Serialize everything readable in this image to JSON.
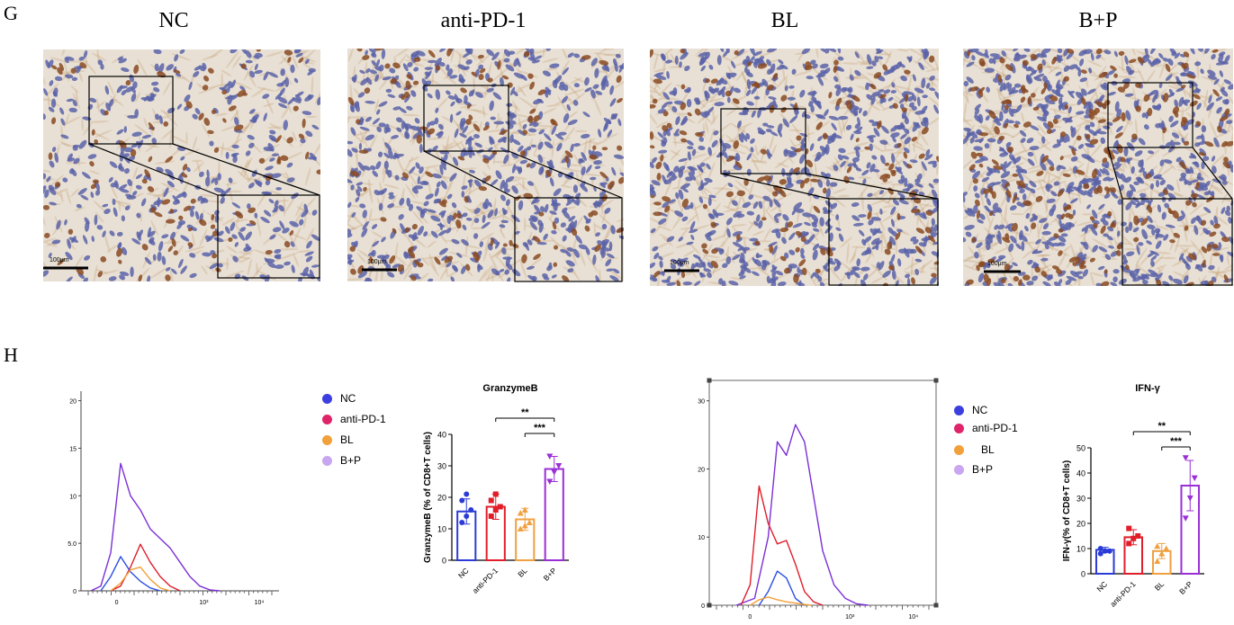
{
  "panel_g": {
    "letter": "G",
    "groups": [
      {
        "title": "NC",
        "scale_label": "100μm"
      },
      {
        "title": "anti-PD-1",
        "scale_label": "100μm"
      },
      {
        "title": "BL",
        "scale_label": "100μm"
      },
      {
        "title": "B+P",
        "scale_label": "100μm"
      }
    ],
    "colors": {
      "tissue_bg": "#e8e0d5",
      "nuclei": "#5a63a8",
      "stain": "#8a4a22"
    }
  },
  "panel_h": {
    "letter": "H",
    "legend_1": [
      {
        "label": "NC",
        "color": "#3b3fe0"
      },
      {
        "label": "anti-PD-1",
        "color": "#e0246a"
      },
      {
        "label": "BL",
        "color": "#f2a03a"
      },
      {
        "label": "B+P",
        "color": "#c9a6f0"
      }
    ],
    "legend_2": [
      {
        "label": "NC",
        "color": "#3b3fe0"
      },
      {
        "label": "anti-PD-1",
        "color": "#e0246a"
      },
      {
        "label": "BL",
        "color": "#f2a03a"
      },
      {
        "label": "B+P",
        "color": "#c9a6f0"
      }
    ]
  },
  "chart_data": [
    {
      "type": "line",
      "title": "",
      "x_ticks": [
        "0",
        "10³",
        "10⁴"
      ],
      "y_ticks": [
        "0",
        "5.0",
        "10",
        "15",
        "20"
      ],
      "ylim": [
        0,
        21
      ],
      "series": [
        {
          "name": "B+P",
          "color": "#7b2fd6",
          "x": [
            0.05,
            0.1,
            0.15,
            0.2,
            0.25,
            0.3,
            0.35,
            0.4,
            0.45,
            0.5,
            0.55,
            0.6,
            0.65,
            0.7
          ],
          "values": [
            0,
            0.5,
            4,
            13.4,
            10,
            8.5,
            6.5,
            5.5,
            4.5,
            3,
            1.5,
            0.5,
            0.1,
            0
          ]
        },
        {
          "name": "anti-PD-1",
          "color": "#e01e2a",
          "x": [
            0.15,
            0.2,
            0.25,
            0.3,
            0.35,
            0.4,
            0.45,
            0.5
          ],
          "values": [
            0,
            0.5,
            2.5,
            4.9,
            3,
            1.5,
            0.5,
            0
          ]
        },
        {
          "name": "NC",
          "color": "#2a4ee0",
          "x": [
            0.1,
            0.15,
            0.2,
            0.25,
            0.3,
            0.35,
            0.4
          ],
          "values": [
            0,
            1.5,
            3.6,
            2,
            1,
            0.3,
            0
          ]
        },
        {
          "name": "BL",
          "color": "#f2a03a",
          "x": [
            0.15,
            0.2,
            0.25,
            0.3,
            0.35,
            0.4,
            0.45
          ],
          "values": [
            0,
            0.8,
            2.2,
            2.5,
            1.2,
            0.3,
            0
          ]
        }
      ]
    },
    {
      "type": "bar",
      "title": "GranzymeB",
      "ylabel": "GranzymeB (% of CD8+T cells)",
      "categories": [
        "NC",
        "anti-PD-1",
        "BL",
        "B+P"
      ],
      "values": [
        15.5,
        17,
        13,
        29
      ],
      "errors": [
        4,
        4,
        3.5,
        4
      ],
      "points": [
        [
          12,
          14,
          16,
          19,
          21
        ],
        [
          14,
          16,
          17,
          19,
          21
        ],
        [
          10,
          11,
          12,
          15,
          16
        ],
        [
          25,
          28,
          30,
          33
        ]
      ],
      "ylim": [
        0,
        40
      ],
      "yticks": [
        "0",
        "10",
        "20",
        "30",
        "40"
      ],
      "colors": [
        "#2b3cd6",
        "#e01e2a",
        "#f0a040",
        "#9a2fd6"
      ],
      "significance": [
        {
          "from": "anti-PD-1",
          "to": "B+P",
          "label": "**"
        },
        {
          "from": "BL",
          "to": "B+P",
          "label": "***"
        }
      ]
    },
    {
      "type": "line",
      "title": "",
      "x_ticks": [
        "0",
        "10³",
        "10⁴"
      ],
      "y_ticks": [
        "0",
        "10",
        "20",
        "30"
      ],
      "ylim": [
        0,
        33
      ],
      "series": [
        {
          "name": "B+P",
          "color": "#7b2fd6",
          "x": [
            0.12,
            0.2,
            0.26,
            0.3,
            0.34,
            0.38,
            0.42,
            0.46,
            0.5,
            0.55,
            0.6,
            0.65,
            0.7
          ],
          "values": [
            0,
            1,
            10,
            24,
            22,
            26.5,
            24,
            16,
            8,
            3,
            1,
            0.2,
            0
          ]
        },
        {
          "name": "anti-PD-1",
          "color": "#e01e2a",
          "x": [
            0.14,
            0.18,
            0.22,
            0.26,
            0.3,
            0.34,
            0.38,
            0.42,
            0.46,
            0.5
          ],
          "values": [
            0,
            3,
            17.5,
            12,
            9,
            9.5,
            6,
            2,
            0.5,
            0
          ]
        },
        {
          "name": "NC",
          "color": "#2a4ee0",
          "x": [
            0.22,
            0.26,
            0.3,
            0.34,
            0.38,
            0.42
          ],
          "values": [
            0,
            2,
            5,
            4,
            1,
            0
          ]
        },
        {
          "name": "BL",
          "color": "#f2a03a",
          "x": [
            0.18,
            0.22,
            0.26,
            0.3,
            0.34,
            0.4,
            0.45
          ],
          "values": [
            0,
            0.8,
            1.2,
            0.8,
            0.5,
            0.2,
            0
          ]
        }
      ]
    },
    {
      "type": "bar",
      "title": "IFN-γ",
      "ylabel": "IFN-γ(% of CD8+T cells)",
      "categories": [
        "NC",
        "anti-PD-1",
        "BL",
        "B+P"
      ],
      "values": [
        9.5,
        14.5,
        9,
        35
      ],
      "errors": [
        1,
        3,
        3,
        10
      ],
      "points": [
        [
          8,
          9,
          9,
          10
        ],
        [
          12,
          14,
          15,
          18
        ],
        [
          5,
          8,
          10,
          11
        ],
        [
          22,
          30,
          38,
          46
        ]
      ],
      "ylim": [
        0,
        50
      ],
      "yticks": [
        "0",
        "10",
        "20",
        "30",
        "40",
        "50"
      ],
      "colors": [
        "#2b3cd6",
        "#e01e2a",
        "#f0a040",
        "#9a2fd6"
      ],
      "significance": [
        {
          "from": "anti-PD-1",
          "to": "B+P",
          "label": "**"
        },
        {
          "from": "BL",
          "to": "B+P",
          "label": "***"
        }
      ]
    }
  ]
}
